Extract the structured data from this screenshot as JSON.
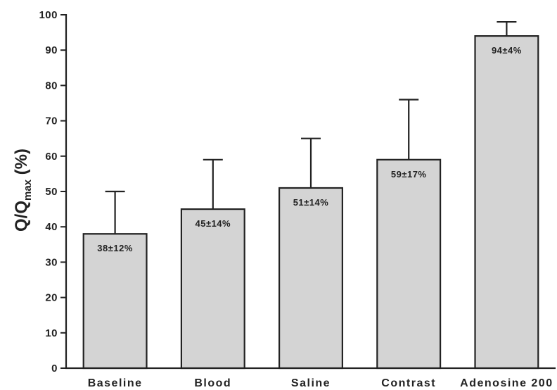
{
  "chart_data": {
    "type": "bar",
    "categories": [
      "Baseline",
      "Blood",
      "Saline",
      "Contrast",
      "Adenosine 200"
    ],
    "values": [
      38,
      45,
      51,
      59,
      94
    ],
    "errors": [
      12,
      14,
      14,
      17,
      4
    ],
    "data_labels": [
      "38±12%",
      "45±14%",
      "51±14%",
      "59±17%",
      "94±4%"
    ],
    "ylabel": {
      "main": "Q/Q",
      "sub": "max",
      "unit": " (%)"
    },
    "xlabel": "",
    "ylim": [
      0,
      100
    ],
    "yticks": [
      0,
      10,
      20,
      30,
      40,
      50,
      60,
      70,
      80,
      90,
      100
    ],
    "bar_color": "#d4d4d4",
    "grid": false,
    "legend": "none"
  }
}
